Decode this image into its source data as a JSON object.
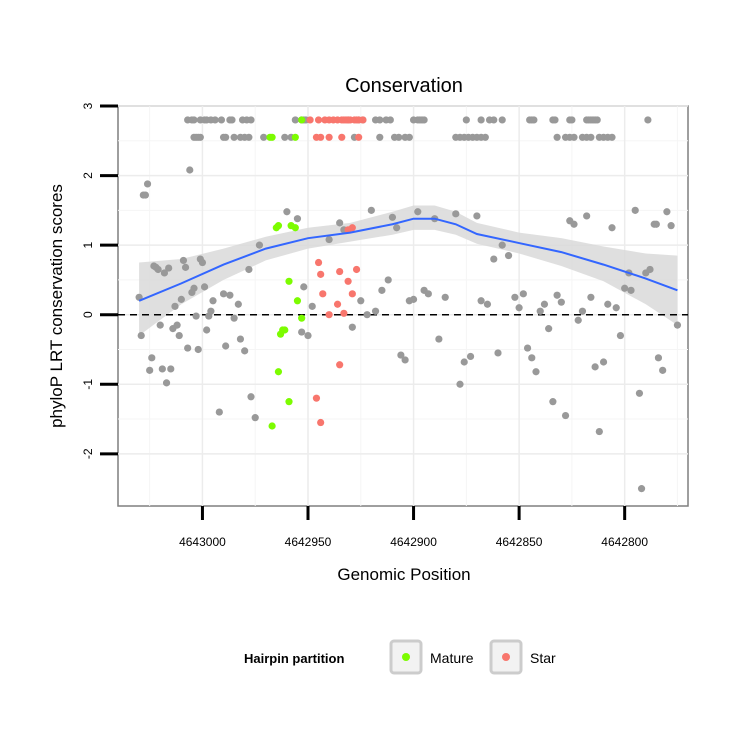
{
  "chart_data": {
    "type": "scatter",
    "title": "Conservation",
    "xlabel": "Genomic Position",
    "ylabel": "phyloP LRT conservation scores",
    "x_reversed": true,
    "xlim": [
      4643040,
      4642770
    ],
    "ylim": [
      -2.75,
      3.0
    ],
    "x_ticks": [
      {
        "value": 4643000,
        "label": "4643000"
      },
      {
        "value": 4642950,
        "label": "4642950"
      },
      {
        "value": 4642900,
        "label": "4642900"
      },
      {
        "value": 4642850,
        "label": "4642850"
      },
      {
        "value": 4642800,
        "label": "4642800"
      }
    ],
    "y_ticks": [
      {
        "value": -2,
        "label": "-2"
      },
      {
        "value": -1,
        "label": "-1"
      },
      {
        "value": 0,
        "label": "0"
      },
      {
        "value": 1,
        "label": "1"
      },
      {
        "value": 2,
        "label": "2"
      },
      {
        "value": 3,
        "label": "3"
      }
    ],
    "reference_line": {
      "y": 0,
      "style": "dashed"
    },
    "grid": true,
    "legend": {
      "title": "Hairpin partition",
      "position": "bottom",
      "entries": [
        {
          "label": "Mature",
          "color": "#7CFC00"
        },
        {
          "label": "Star",
          "color": "#F8766D"
        }
      ]
    },
    "colors": {
      "other": "#999999",
      "Mature": "#7CFC00",
      "Star": "#F8766D",
      "smooth": "#3366FF",
      "band": "#D9D9D9"
    },
    "smooth": {
      "x": [
        4643030,
        4643010,
        4642990,
        4642970,
        4642950,
        4642930,
        4642910,
        4642900,
        4642890,
        4642880,
        4642870,
        4642850,
        4642830,
        4642810,
        4642790,
        4642775
      ],
      "y": [
        0.2,
        0.45,
        0.72,
        0.95,
        1.1,
        1.18,
        1.3,
        1.38,
        1.38,
        1.3,
        1.16,
        1.03,
        0.9,
        0.72,
        0.52,
        0.35
      ],
      "lower": [
        -0.3,
        0.15,
        0.5,
        0.78,
        0.95,
        1.05,
        1.15,
        1.22,
        1.22,
        1.15,
        1.02,
        0.88,
        0.7,
        0.48,
        0.15,
        -0.15
      ],
      "upper": [
        0.75,
        0.8,
        0.95,
        1.12,
        1.25,
        1.32,
        1.48,
        1.57,
        1.57,
        1.48,
        1.32,
        1.18,
        1.1,
        0.98,
        0.88,
        0.85
      ]
    },
    "series": [
      {
        "name": "Other",
        "color": "#999999",
        "points": [
          [
            4643030,
            0.25
          ],
          [
            4643029,
            -0.3
          ],
          [
            4643028,
            1.72
          ],
          [
            4643027,
            1.72
          ],
          [
            4643026,
            1.88
          ],
          [
            4643025,
            -0.8
          ],
          [
            4643024,
            -0.62
          ],
          [
            4643023,
            0.7
          ],
          [
            4643022,
            0.68
          ],
          [
            4643021,
            0.65
          ],
          [
            4643020,
            -0.15
          ],
          [
            4643019,
            -0.78
          ],
          [
            4643018,
            0.6
          ],
          [
            4643017,
            -0.98
          ],
          [
            4643016,
            0.67
          ],
          [
            4643015,
            -0.78
          ],
          [
            4643014,
            -0.2
          ],
          [
            4643013,
            0.12
          ],
          [
            4643012,
            -0.15
          ],
          [
            4643011,
            -0.3
          ],
          [
            4643010,
            0.22
          ],
          [
            4643009,
            0.78
          ],
          [
            4643008,
            0.68
          ],
          [
            4643007,
            -0.48
          ],
          [
            4643006,
            2.08
          ],
          [
            4643005,
            0.32
          ],
          [
            4643004,
            0.38
          ],
          [
            4643003,
            -0.02
          ],
          [
            4643002,
            -0.5
          ],
          [
            4643001,
            0.8
          ],
          [
            4643000,
            0.75
          ],
          [
            4642999,
            0.4
          ],
          [
            4642998,
            -0.22
          ],
          [
            4642997,
            -0.02
          ],
          [
            4642996,
            0.05
          ],
          [
            4642995,
            0.2
          ],
          [
            4642992,
            -1.4
          ],
          [
            4642990,
            0.3
          ],
          [
            4642989,
            -0.45
          ],
          [
            4642987,
            0.28
          ],
          [
            4642985,
            -0.05
          ],
          [
            4642983,
            0.15
          ],
          [
            4642982,
            -0.35
          ],
          [
            4642980,
            -0.52
          ],
          [
            4642978,
            0.65
          ],
          [
            4642977,
            -1.18
          ],
          [
            4642975,
            -1.48
          ],
          [
            4642973,
            1.0
          ],
          [
            4642960,
            1.48
          ],
          [
            4642955,
            1.38
          ],
          [
            4642953,
            -0.25
          ],
          [
            4642952,
            0.4
          ],
          [
            4642950,
            -0.3
          ],
          [
            4642948,
            0.12
          ],
          [
            4642940,
            1.08
          ],
          [
            4642935,
            1.32
          ],
          [
            4642933,
            1.22
          ],
          [
            4642929,
            -0.18
          ],
          [
            4642925,
            0.2
          ],
          [
            4642922,
            0.0
          ],
          [
            4642920,
            1.5
          ],
          [
            4642918,
            0.05
          ],
          [
            4642915,
            0.35
          ],
          [
            4642912,
            0.5
          ],
          [
            4642910,
            1.4
          ],
          [
            4642908,
            1.25
          ],
          [
            4642906,
            -0.58
          ],
          [
            4642904,
            -0.65
          ],
          [
            4642902,
            0.2
          ],
          [
            4642900,
            0.22
          ],
          [
            4642898,
            1.48
          ],
          [
            4642895,
            0.35
          ],
          [
            4642893,
            0.3
          ],
          [
            4642890,
            1.38
          ],
          [
            4642888,
            -0.35
          ],
          [
            4642885,
            0.25
          ],
          [
            4642880,
            1.45
          ],
          [
            4642878,
            -1.0
          ],
          [
            4642876,
            -0.68
          ],
          [
            4642873,
            -0.6
          ],
          [
            4642870,
            1.42
          ],
          [
            4642868,
            0.2
          ],
          [
            4642865,
            0.15
          ],
          [
            4642862,
            0.8
          ],
          [
            4642860,
            -0.55
          ],
          [
            4642858,
            1.0
          ],
          [
            4642855,
            0.85
          ],
          [
            4642852,
            0.25
          ],
          [
            4642850,
            0.1
          ],
          [
            4642848,
            0.3
          ],
          [
            4642846,
            -0.48
          ],
          [
            4642844,
            -0.62
          ],
          [
            4642842,
            -0.82
          ],
          [
            4642840,
            0.05
          ],
          [
            4642838,
            0.15
          ],
          [
            4642836,
            -0.2
          ],
          [
            4642834,
            -1.25
          ],
          [
            4642832,
            0.28
          ],
          [
            4642830,
            0.18
          ],
          [
            4642828,
            -1.45
          ],
          [
            4642826,
            1.35
          ],
          [
            4642824,
            1.3
          ],
          [
            4642822,
            -0.08
          ],
          [
            4642820,
            0.05
          ],
          [
            4642818,
            1.42
          ],
          [
            4642816,
            0.25
          ],
          [
            4642814,
            -0.75
          ],
          [
            4642812,
            -1.68
          ],
          [
            4642810,
            -0.68
          ],
          [
            4642808,
            0.15
          ],
          [
            4642806,
            1.25
          ],
          [
            4642804,
            0.1
          ],
          [
            4642802,
            -0.3
          ],
          [
            4642800,
            0.38
          ],
          [
            4642798,
            0.6
          ],
          [
            4642797,
            0.35
          ],
          [
            4642795,
            1.5
          ],
          [
            4642793,
            -1.13
          ],
          [
            4642792,
            -2.5
          ],
          [
            4642790,
            0.6
          ],
          [
            4642788,
            0.65
          ],
          [
            4642786,
            1.3
          ],
          [
            4642785,
            1.3
          ],
          [
            4642784,
            -0.62
          ],
          [
            4642782,
            -0.8
          ],
          [
            4642780,
            1.48
          ],
          [
            4642778,
            1.28
          ],
          [
            4642775,
            -0.15
          ]
        ],
        "top_rows": [
          {
            "y": 2.8,
            "x": [
              4643007,
              4643005,
              4643004,
              4643001,
              4642999,
              4642998,
              4642996,
              4642994,
              4642991,
              4642987,
              4642986,
              4642981,
              4642979,
              4642977,
              4642956,
              4642953,
              4642952,
              4642951,
              4642931,
              4642926,
              4642924,
              4642918,
              4642916,
              4642913,
              4642911,
              4642900,
              4642898,
              4642897,
              4642896,
              4642895,
              4642875,
              4642868,
              4642864,
              4642862,
              4642858,
              4642845,
              4642844,
              4642843,
              4642834,
              4642833,
              4642826,
              4642825,
              4642818,
              4642817,
              4642816,
              4642815,
              4642814,
              4642813,
              4642789
            ]
          },
          {
            "y": 2.55,
            "x": [
              4643004,
              4643003,
              4643002,
              4643001,
              4642990,
              4642989,
              4642985,
              4642982,
              4642980,
              4642978,
              4642971,
              4642961,
              4642958,
              4642928,
              4642916,
              4642909,
              4642907,
              4642904,
              4642902,
              4642880,
              4642878,
              4642876,
              4642874,
              4642872,
              4642870,
              4642868,
              4642866,
              4642832,
              4642828,
              4642826,
              4642824,
              4642820,
              4642818,
              4642816,
              4642812,
              4642810,
              4642808,
              4642806
            ]
          }
        ]
      },
      {
        "name": "Mature",
        "color": "#7CFC00",
        "points": [
          [
            4642965,
            1.25
          ],
          [
            4642964,
            1.28
          ],
          [
            4642958,
            1.28
          ],
          [
            4642956,
            1.25
          ],
          [
            4642959,
            0.48
          ],
          [
            4642955,
            0.2
          ],
          [
            4642953,
            -0.05
          ],
          [
            4642962,
            -0.22
          ],
          [
            4642961,
            -0.22
          ],
          [
            4642963,
            -0.28
          ],
          [
            4642964,
            -0.82
          ],
          [
            4642959,
            -1.25
          ],
          [
            4642967,
            -1.6
          ]
        ],
        "top_rows": [
          {
            "y": 2.8,
            "x": [
              4642953
            ]
          },
          {
            "y": 2.55,
            "x": [
              4642968,
              4642967,
              4642956
            ]
          }
        ]
      },
      {
        "name": "Star",
        "color": "#F8766D",
        "points": [
          [
            4642945,
            0.75
          ],
          [
            4642944,
            0.58
          ],
          [
            4642943,
            0.3
          ],
          [
            4642940,
            0.0
          ],
          [
            4642936,
            0.15
          ],
          [
            4642935,
            0.62
          ],
          [
            4642933,
            0.02
          ],
          [
            4642931,
            0.48
          ],
          [
            4642929,
            0.3
          ],
          [
            4642927,
            0.65
          ],
          [
            4642931,
            1.22
          ],
          [
            4642929,
            1.25
          ],
          [
            4642935,
            -0.72
          ],
          [
            4642946,
            -1.2
          ],
          [
            4642944,
            -1.55
          ]
        ],
        "top_rows": [
          {
            "y": 2.8,
            "x": [
              4642949,
              4642945,
              4642942,
              4642940,
              4642938,
              4642936,
              4642934,
              4642933,
              4642932,
              4642931,
              4642930,
              4642928,
              4642927,
              4642926,
              4642924
            ]
          },
          {
            "y": 2.55,
            "x": [
              4642946,
              4642944,
              4642940,
              4642934,
              4642926
            ]
          }
        ]
      }
    ]
  }
}
